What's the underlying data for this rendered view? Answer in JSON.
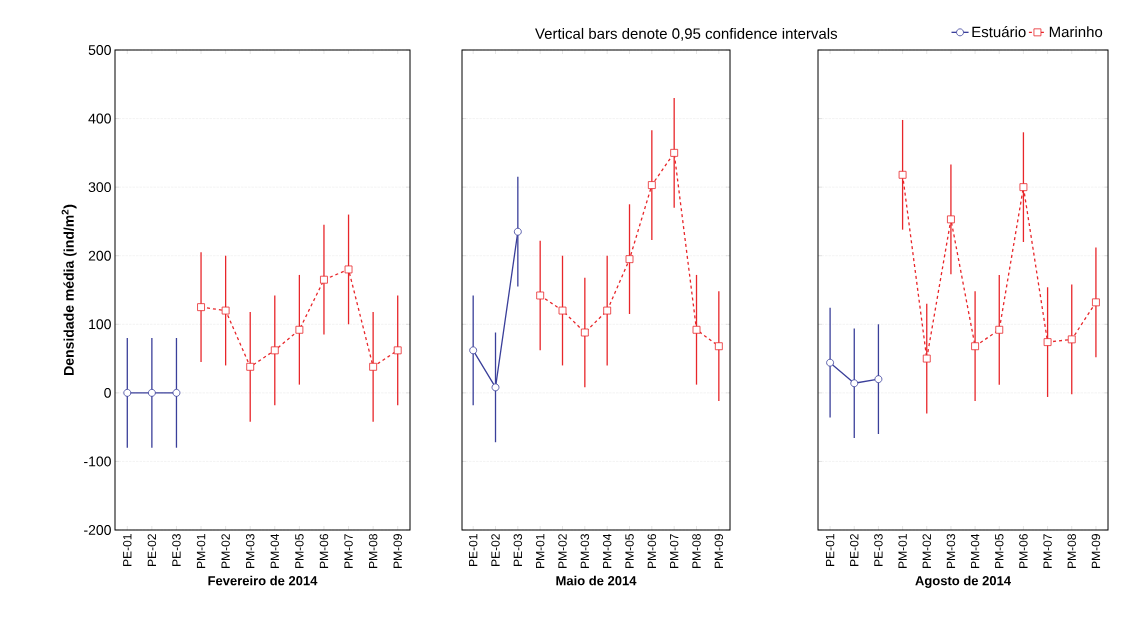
{
  "chart_data": [
    {
      "type": "line",
      "xlabel": "Fevereiro de 2014",
      "ylabel": "Densidade média (ind/m$^{2}$)",
      "categories": [
        "PE-01",
        "PE-02",
        "PE-03",
        "PM-01",
        "PM-02",
        "PM-03",
        "PM-04",
        "PM-05",
        "PM-06",
        "PM-07",
        "PM-08",
        "PM-09"
      ],
      "series": [
        {
          "color": "#3a3f9a",
          "marker": "circle",
          "line_style": "solid",
          "values": [
            0,
            0,
            0,
            null,
            null,
            null,
            null,
            null,
            null,
            null,
            null,
            null
          ],
          "errors": [
            80,
            80,
            80,
            null,
            null,
            null,
            null,
            null,
            null,
            null,
            null,
            null
          ]
        },
        {
          "color": "#e8262a",
          "marker": "square",
          "line_style": "dashed",
          "values": [
            null,
            null,
            null,
            125,
            120,
            38,
            62,
            92,
            165,
            180,
            38,
            62
          ],
          "errors": [
            null,
            null,
            null,
            80,
            80,
            80,
            80,
            80,
            80,
            80,
            80,
            80
          ]
        }
      ],
      "ylim": [
        -200,
        500
      ],
      "yticks": [
        -200,
        -100,
        0,
        100,
        200,
        300,
        400,
        500
      ],
      "grid": "y"
    },
    {
      "type": "line",
      "xlabel": "Maio de 2014",
      "categories": [
        "PE-01",
        "PE-02",
        "PE-03",
        "PM-01",
        "PM-02",
        "PM-03",
        "PM-04",
        "PM-05",
        "PM-06",
        "PM-07",
        "PM-08",
        "PM-09"
      ],
      "series": [
        {
          "color": "#3a3f9a",
          "marker": "circle",
          "line_style": "solid",
          "values": [
            62,
            8,
            235,
            null,
            null,
            null,
            null,
            null,
            null,
            null,
            null,
            null
          ],
          "errors": [
            80,
            80,
            80,
            null,
            null,
            null,
            null,
            null,
            null,
            null,
            null,
            null
          ]
        },
        {
          "color": "#e8262a",
          "marker": "square",
          "line_style": "dashed",
          "values": [
            null,
            null,
            null,
            142,
            120,
            88,
            120,
            195,
            303,
            350,
            92,
            68
          ],
          "errors": [
            null,
            null,
            null,
            80,
            80,
            80,
            80,
            80,
            80,
            80,
            80,
            80
          ]
        }
      ],
      "ylim": [
        -200,
        500
      ],
      "yticks": [
        -200,
        -100,
        0,
        100,
        200,
        300,
        400,
        500
      ],
      "grid": "y",
      "tick_labels": "x"
    },
    {
      "type": "line",
      "xlabel": "Agosto de 2014",
      "annotations": [
        "Vertical bars denote 0,95 confidence intervals"
      ],
      "legend": "top right",
      "categories": [
        "PE-01",
        "PE-02",
        "PE-03",
        "PM-01",
        "PM-02",
        "PM-03",
        "PM-04",
        "PM-05",
        "PM-06",
        "PM-07",
        "PM-08",
        "PM-09"
      ],
      "series": [
        {
          "name": "Estuário",
          "color": "#3a3f9a",
          "marker": "circle",
          "line_style": "solid",
          "values": [
            44,
            14,
            20,
            null,
            null,
            null,
            null,
            null,
            null,
            null,
            null,
            null
          ],
          "errors": [
            80,
            80,
            80,
            null,
            null,
            null,
            null,
            null,
            null,
            null,
            null,
            null
          ]
        },
        {
          "name": "Marinho",
          "color": "#e8262a",
          "marker": "square",
          "line_style": "dashed",
          "values": [
            null,
            null,
            null,
            318,
            50,
            253,
            68,
            92,
            300,
            74,
            78,
            132
          ],
          "errors": [
            null,
            null,
            null,
            80,
            80,
            80,
            80,
            80,
            80,
            80,
            80,
            80
          ]
        }
      ],
      "ylim": [
        -200,
        500
      ],
      "yticks": [
        -200,
        -100,
        0,
        100,
        200,
        300,
        400,
        500
      ],
      "grid": "y",
      "tick_labels": "x"
    }
  ]
}
